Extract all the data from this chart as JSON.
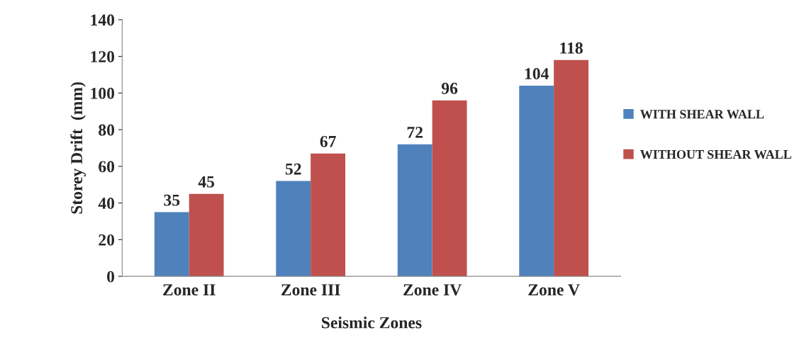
{
  "chart_data": {
    "type": "bar",
    "xlabel": "Seismic Zones",
    "ylabel": "Storey Drift  (mm)",
    "categories": [
      "Zone II",
      "Zone III",
      "Zone IV",
      "Zone V"
    ],
    "series": [
      {
        "name": "WITH SHEAR WALL",
        "color": "#4f81bd",
        "values": [
          35,
          52,
          72,
          104
        ]
      },
      {
        "name": "WITHOUT SHEAR WALL",
        "color": "#c0504d",
        "values": [
          45,
          67,
          96,
          118
        ]
      }
    ],
    "ylim": [
      0,
      140
    ],
    "yticks": [
      0,
      20,
      40,
      60,
      80,
      100,
      120,
      140
    ],
    "data_labels": true,
    "grid": false,
    "legend": "right"
  }
}
